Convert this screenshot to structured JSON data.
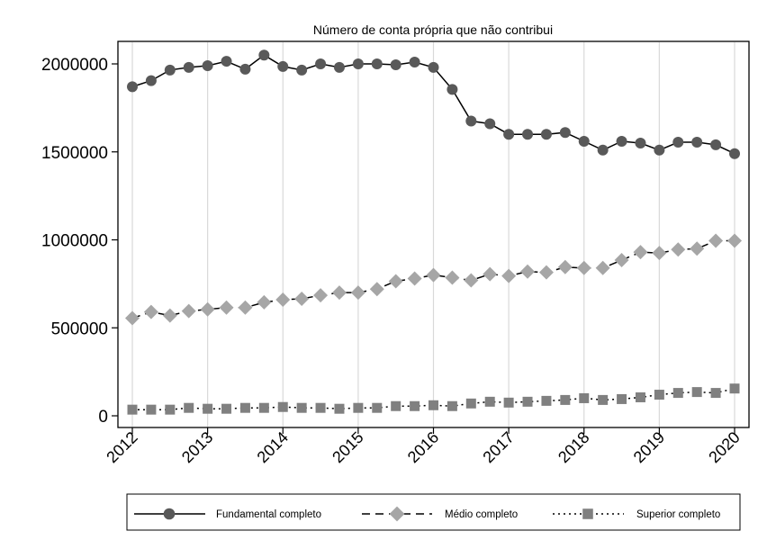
{
  "chart_data": {
    "type": "line",
    "title": "Número de conta própria que não contribui",
    "xlabel": "",
    "ylabel": "",
    "xlim": [
      2012,
      2020
    ],
    "ylim": [
      -50000,
      2130000
    ],
    "x_ticks": [
      2012,
      2013,
      2014,
      2015,
      2016,
      2017,
      2018,
      2019,
      2020
    ],
    "x_tick_labels": [
      "2012",
      "2013",
      "2014",
      "2015",
      "2016",
      "2017",
      "2018",
      "2019",
      "2020"
    ],
    "y_ticks": [
      0,
      500000,
      1000000,
      1500000,
      2000000
    ],
    "y_tick_labels": [
      "0",
      "500000",
      "1000000",
      "1500000",
      "2000000"
    ],
    "grid": "vertical lines at x ticks",
    "legend_position": "bottom",
    "x": [
      2012,
      2012.25,
      2012.5,
      2012.75,
      2013,
      2013.25,
      2013.5,
      2013.75,
      2014,
      2014.25,
      2014.5,
      2014.75,
      2015,
      2015.25,
      2015.5,
      2015.75,
      2016,
      2016.25,
      2016.5,
      2016.75,
      2017,
      2017.25,
      2017.5,
      2017.75,
      2018,
      2018.25,
      2018.5,
      2018.75,
      2019,
      2019.25,
      2019.5,
      2019.75,
      2020
    ],
    "series": [
      {
        "name": "Fundamental completo",
        "marker": "circle",
        "line_style": "solid",
        "color": "#595959",
        "values": [
          1870000,
          1905000,
          1965000,
          1980000,
          1990000,
          2015000,
          1970000,
          2050000,
          1985000,
          1965000,
          2000000,
          1980000,
          2000000,
          2000000,
          1995000,
          2010000,
          1980000,
          1855000,
          1675000,
          1660000,
          1600000,
          1600000,
          1600000,
          1610000,
          1560000,
          1510000,
          1560000,
          1550000,
          1510000,
          1555000,
          1555000,
          1540000,
          1490000
        ]
      },
      {
        "name": "Médio completo",
        "marker": "diamond",
        "line_style": "dash",
        "color": "#a6a6a6",
        "values": [
          555000,
          590000,
          570000,
          595000,
          605000,
          615000,
          615000,
          645000,
          660000,
          665000,
          685000,
          700000,
          700000,
          720000,
          765000,
          780000,
          800000,
          785000,
          770000,
          805000,
          795000,
          820000,
          815000,
          845000,
          840000,
          840000,
          885000,
          930000,
          925000,
          945000,
          950000,
          995000,
          995000
        ]
      },
      {
        "name": "Superior completo",
        "marker": "square",
        "line_style": "dot",
        "color": "#808080",
        "values": [
          35000,
          35000,
          35000,
          45000,
          40000,
          40000,
          45000,
          45000,
          50000,
          45000,
          45000,
          40000,
          45000,
          45000,
          55000,
          55000,
          60000,
          55000,
          70000,
          80000,
          75000,
          80000,
          85000,
          90000,
          100000,
          90000,
          95000,
          105000,
          120000,
          130000,
          135000,
          130000,
          155000
        ]
      }
    ]
  }
}
